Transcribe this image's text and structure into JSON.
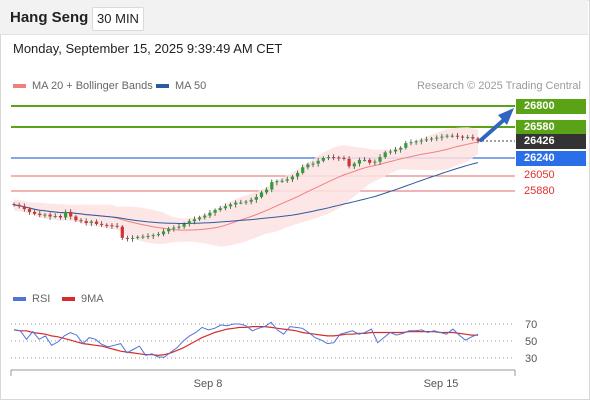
{
  "header": {
    "instrument": "Hang Seng",
    "interval": "30 MIN",
    "timestamp": "Monday, September 15, 2025 9:39:49 AM CET"
  },
  "legend": {
    "bollinger_label": "MA 20 + Bollinger Bands",
    "ma50_label": "MA 50",
    "rsi_label": "RSI",
    "ma9_label": "9MA",
    "credit": "Research © 2025 Trading Central"
  },
  "colors": {
    "bollinger": "#f08080",
    "band_fill": "#fde2e2",
    "ma50": "#2c5aa0",
    "resistance": "#5aa316",
    "pivot": "#3a6fe0",
    "support": "#e36a6a",
    "up_candle": "#2e9e3a",
    "down_candle": "#d43030",
    "last_price_bg": "#333333",
    "arrow": "#2f67c0",
    "rsi": "#4f74d6",
    "rsi_ma": "#d62c2c"
  },
  "levels": [
    {
      "label": "26800",
      "kind": "resistance"
    },
    {
      "label": "26580",
      "kind": "resistance"
    },
    {
      "label": "26426",
      "kind": "last"
    },
    {
      "label": "26240",
      "kind": "pivot"
    },
    {
      "label": "26050",
      "kind": "support"
    },
    {
      "label": "25880",
      "kind": "support"
    }
  ],
  "chart_data": {
    "type": "line",
    "title": "Hang Seng",
    "interval": "30 MIN",
    "x_labels": [
      "Sep 8",
      "Sep 15"
    ],
    "price_levels": {
      "resistance": [
        26800,
        26580
      ],
      "last": 26426,
      "pivot": 26240,
      "support": [
        26050,
        25880
      ]
    },
    "price_close_approx": [
      25735,
      25720,
      25690,
      25660,
      25640,
      25625,
      25630,
      25610,
      25615,
      25600,
      25660,
      25610,
      25570,
      25560,
      25540,
      25555,
      25530,
      25520,
      25515,
      25510,
      25500,
      25380,
      25370,
      25380,
      25390,
      25395,
      25400,
      25410,
      25420,
      25450,
      25480,
      25490,
      25500,
      25530,
      25560,
      25580,
      25600,
      25620,
      25650,
      25680,
      25700,
      25720,
      25740,
      25760,
      25760,
      25770,
      25790,
      25820,
      25870,
      25900,
      25980,
      25990,
      25995,
      26010,
      26040,
      26080,
      26140,
      26170,
      26180,
      26210,
      26240,
      26250,
      26245,
      26240,
      26230,
      26150,
      26180,
      26220,
      26220,
      26190,
      26200,
      26250,
      26300,
      26310,
      26330,
      26350,
      26400,
      26410,
      26420,
      26430,
      26440,
      26450,
      26460,
      26470,
      26480,
      26480,
      26470,
      26460,
      26465,
      26450,
      26426
    ],
    "rsi": {
      "levels": [
        70,
        50,
        30
      ],
      "rsi_values": [
        63,
        62,
        52,
        61,
        52,
        56,
        45,
        49,
        56,
        60,
        57,
        47,
        54,
        52,
        46,
        43,
        45,
        47,
        36,
        40,
        44,
        33,
        35,
        31,
        31,
        37,
        42,
        50,
        56,
        60,
        66,
        63,
        65,
        69,
        68,
        70,
        70,
        68,
        62,
        65,
        67,
        72,
        63,
        58,
        67,
        66,
        65,
        60,
        54,
        51,
        47,
        48,
        58,
        60,
        62,
        58,
        60,
        64,
        48,
        54,
        60,
        57,
        59,
        62,
        62,
        63,
        60,
        62,
        60,
        58,
        64,
        57,
        51,
        55,
        58
      ],
      "ma9_values": [
        63,
        62,
        62,
        60,
        59,
        58,
        56,
        55,
        53,
        51,
        49,
        47,
        46,
        45,
        44,
        42,
        40,
        38,
        37,
        36,
        35,
        34,
        34,
        33,
        34,
        36,
        39,
        42,
        46,
        50,
        54,
        57,
        60,
        62,
        64,
        65,
        66,
        66,
        67,
        67,
        67,
        66,
        65,
        64,
        63,
        62,
        60,
        59,
        58,
        57,
        56,
        56,
        57,
        58,
        58,
        59,
        59,
        60,
        60,
        60,
        60,
        60,
        60,
        61,
        61,
        61,
        61,
        61,
        60,
        60,
        60,
        59,
        58,
        57,
        57
      ]
    }
  }
}
